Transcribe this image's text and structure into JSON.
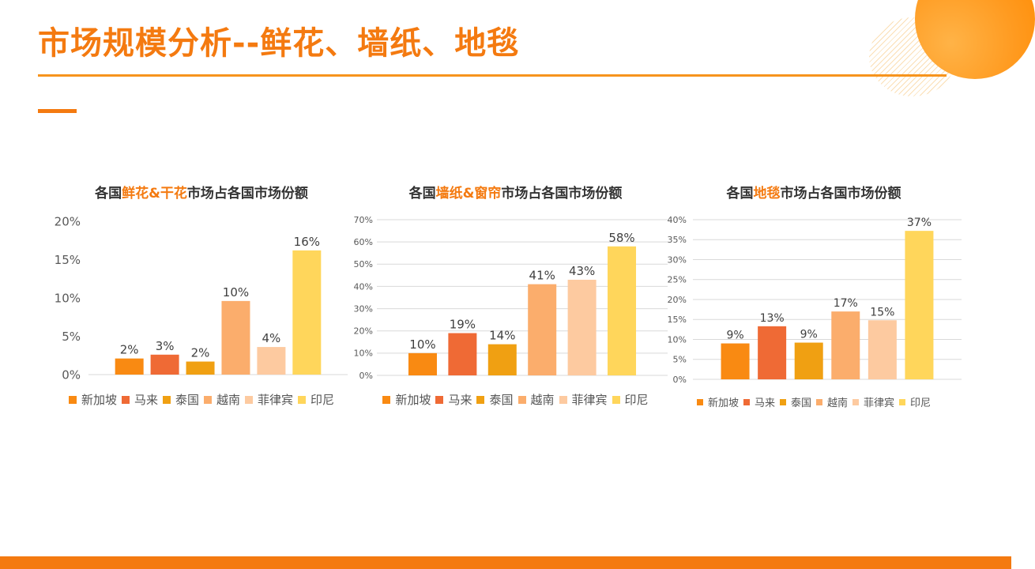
{
  "page": {
    "title": "市场规模分析--鲜花、墙纸、地毯"
  },
  "colors": {
    "accent": "#f47a10",
    "rule": "#f7941d",
    "series": [
      "#f98a12",
      "#ef6a35",
      "#f0a012",
      "#fbad6c",
      "#fdcaa0",
      "#ffd65b"
    ]
  },
  "legend_labels": [
    "新加坡",
    "马来",
    "泰国",
    "越南",
    "菲律宾",
    "印尼"
  ],
  "chart_data": [
    {
      "type": "bar",
      "title": {
        "pre": "各国",
        "highlight": "鲜花&干花",
        "post": "市场占各国市场份额"
      },
      "categories": [
        "新加坡",
        "马来",
        "泰国",
        "越南",
        "菲律宾",
        "印尼"
      ],
      "values": [
        2,
        3,
        2,
        10,
        4,
        16
      ],
      "raw_values": [
        2.1,
        2.6,
        1.7,
        9.6,
        3.6,
        16.2
      ],
      "ylim": [
        0,
        20
      ],
      "yticks": [
        "0%",
        "5%",
        "10%",
        "15%",
        "20%"
      ],
      "grid": false,
      "legend": "bottom"
    },
    {
      "type": "bar",
      "title": {
        "pre": "各国",
        "highlight": "墙纸&窗帘",
        "post": "市场占各国市场份额"
      },
      "categories": [
        "新加坡",
        "马来",
        "泰国",
        "越南",
        "菲律宾",
        "印尼"
      ],
      "values": [
        10,
        19,
        14,
        41,
        43,
        58
      ],
      "raw_values": [
        10,
        19,
        14,
        41,
        43,
        58
      ],
      "ylim": [
        0,
        70
      ],
      "yticks": [
        "0%",
        "10%",
        "20%",
        "30%",
        "40%",
        "50%",
        "60%",
        "70%"
      ],
      "grid": true,
      "legend": "bottom"
    },
    {
      "type": "bar",
      "title": {
        "pre": "各国",
        "highlight": "地毯",
        "post": "市场占各国市场份额"
      },
      "categories": [
        "新加坡",
        "马来",
        "泰国",
        "越南",
        "菲律宾",
        "印尼"
      ],
      "values": [
        9,
        13,
        9,
        17,
        15,
        37
      ],
      "raw_values": [
        9,
        13.3,
        9.2,
        17,
        14.8,
        37.2
      ],
      "ylim": [
        0,
        40
      ],
      "yticks": [
        "0%",
        "5%",
        "10%",
        "15%",
        "20%",
        "25%",
        "30%",
        "35%",
        "40%"
      ],
      "grid": true,
      "legend": "bottom"
    }
  ]
}
